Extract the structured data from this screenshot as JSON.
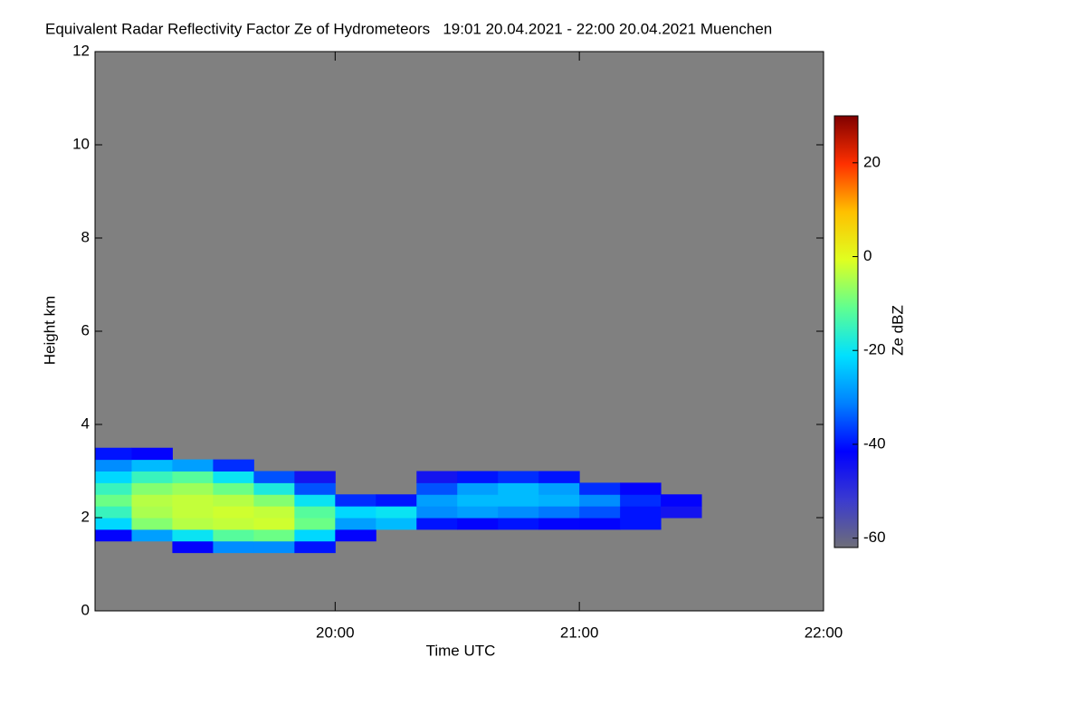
{
  "chart_data": {
    "type": "heatmap",
    "title": "Equivalent Radar Reflectivity Factor Ze of Hydrometeors   19:01 20.04.2021 - 22:00 20.04.2021 Muenchen",
    "x_label": "Time UTC",
    "y_label": "Height km",
    "colorbar_label": "Ze dBZ",
    "background": "#808080",
    "xlim": [
      19.0167,
      22.0
    ],
    "xticks": [
      {
        "value": 20,
        "label": "20:00"
      },
      {
        "value": 21,
        "label": "21:00"
      },
      {
        "value": 22,
        "label": "22:00"
      }
    ],
    "ylim": [
      0,
      12
    ],
    "yticks": [
      0,
      2,
      4,
      6,
      8,
      10,
      12
    ],
    "zlim": [
      -62,
      30
    ],
    "zticks": [
      20,
      0,
      -20,
      -40,
      -60
    ],
    "colormap": [
      "#6e6e78",
      "#3a3ad0",
      "#0000ff",
      "#0080ff",
      "#00e0ff",
      "#60ff90",
      "#e0ff20",
      "#ffc000",
      "#ff3000",
      "#800000"
    ],
    "xbins": [
      19.0167,
      19.1667,
      19.3333,
      19.5,
      19.6667,
      19.8333,
      20.0,
      20.1667,
      20.3333,
      20.5,
      20.6667,
      20.8333,
      21.0,
      21.1667,
      21.3333,
      21.5
    ],
    "ybins": [
      1.25,
      1.5,
      1.75,
      2.0,
      2.25,
      2.5,
      2.75,
      3.0,
      3.25,
      3.5
    ],
    "z": [
      [
        null,
        null,
        -42,
        -30,
        -30,
        -40,
        null,
        null,
        null,
        null,
        null,
        null,
        null,
        null,
        null
      ],
      [
        -42,
        -28,
        -20,
        -12,
        -10,
        -22,
        -42,
        null,
        null,
        null,
        null,
        null,
        null,
        null,
        null
      ],
      [
        -22,
        -8,
        -4,
        -3,
        -2,
        -10,
        -28,
        -25,
        -40,
        -42,
        -40,
        -42,
        -42,
        -40,
        null
      ],
      [
        -15,
        -5,
        -3,
        -2,
        -3,
        -12,
        -22,
        -20,
        -30,
        -28,
        -30,
        -32,
        -35,
        -40,
        -45
      ],
      [
        -10,
        -4,
        -3,
        -4,
        -8,
        -20,
        -38,
        -40,
        -28,
        -25,
        -25,
        -26,
        -30,
        -38,
        -42
      ],
      [
        -15,
        -8,
        -6,
        -10,
        -18,
        -35,
        null,
        null,
        -35,
        -28,
        -25,
        -28,
        -38,
        -42,
        null
      ],
      [
        -22,
        -15,
        -12,
        -20,
        -35,
        -45,
        null,
        null,
        -45,
        -40,
        -38,
        -40,
        null,
        null,
        null
      ],
      [
        -30,
        -25,
        -28,
        -38,
        null,
        null,
        null,
        null,
        null,
        null,
        null,
        null,
        null,
        null,
        null
      ],
      [
        -40,
        -42,
        null,
        null,
        null,
        null,
        null,
        null,
        null,
        null,
        null,
        null,
        null,
        null,
        null
      ]
    ]
  }
}
